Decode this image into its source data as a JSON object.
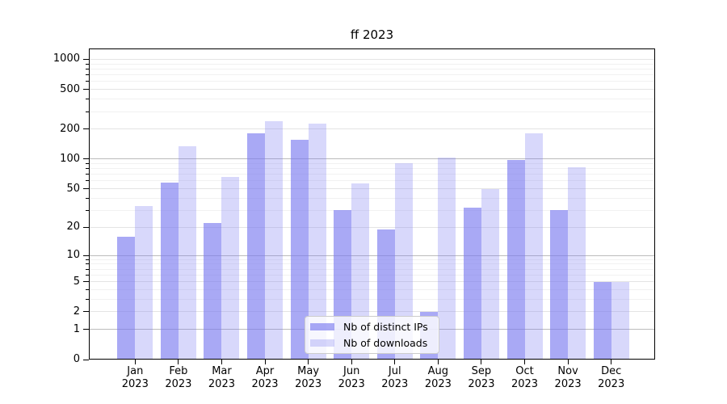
{
  "title": "ff 2023",
  "chart_data": {
    "type": "bar",
    "title": "ff 2023",
    "y_scale": "log1p",
    "grid": "horizontal",
    "legend_position": "lower center",
    "categories": [
      "Jan 2023",
      "Feb 2023",
      "Mar 2023",
      "Apr 2023",
      "May 2023",
      "Jun 2023",
      "Jul 2023",
      "Aug 2023",
      "Sep 2023",
      "Oct 2023",
      "Nov 2023",
      "Dec 2023"
    ],
    "series": [
      {
        "name": "Nb of distinct IPs",
        "color": "rgba(120,120,240,0.64)",
        "values": [
          16,
          58,
          22,
          183,
          157,
          30,
          19,
          2,
          32,
          97,
          30,
          5
        ]
      },
      {
        "name": "Nb of downloads",
        "color": "rgba(120,120,240,0.29)",
        "values": [
          33,
          135,
          66,
          240,
          228,
          57,
          90,
          103,
          50,
          180,
          83,
          5
        ]
      }
    ],
    "y_ticks": [
      0,
      1,
      2,
      5,
      10,
      20,
      50,
      100,
      200,
      500,
      1000
    ],
    "ylim": [
      0,
      1300
    ]
  }
}
